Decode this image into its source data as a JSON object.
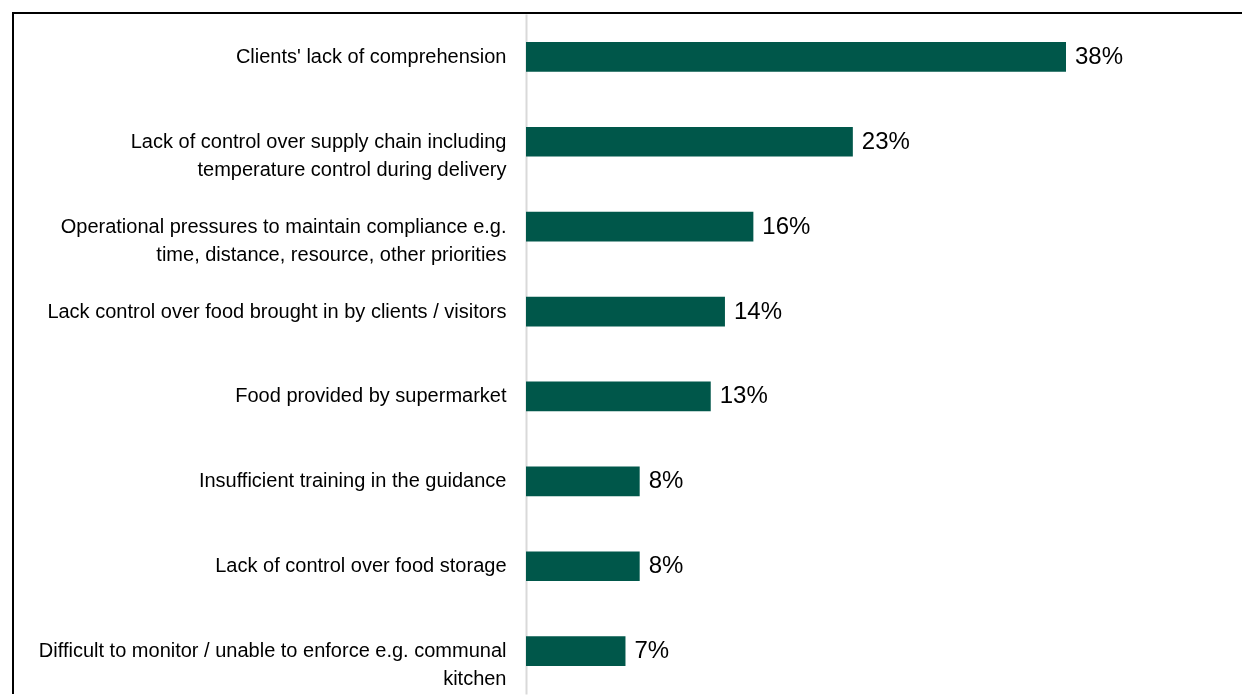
{
  "chart_data": {
    "type": "bar",
    "orientation": "horizontal",
    "categories": [
      "Clients' lack of comprehension",
      "Lack of control over supply chain including temperature control during delivery",
      "Operational pressures to maintain compliance e.g. time, distance, resource, other priorities",
      "Lack control over food brought in by clients / visitors",
      "Food provided by supermarket",
      "Insufficient training in the guidance",
      "Lack of control over food storage",
      "Difficult to monitor / unable to enforce e.g. communal kitchen"
    ],
    "values": [
      38,
      23,
      16,
      14,
      13,
      8,
      8,
      7
    ],
    "value_labels": [
      "38%",
      "23%",
      "16%",
      "14%",
      "13%",
      "8%",
      "8%",
      "7%"
    ],
    "color": "#00574a"
  }
}
